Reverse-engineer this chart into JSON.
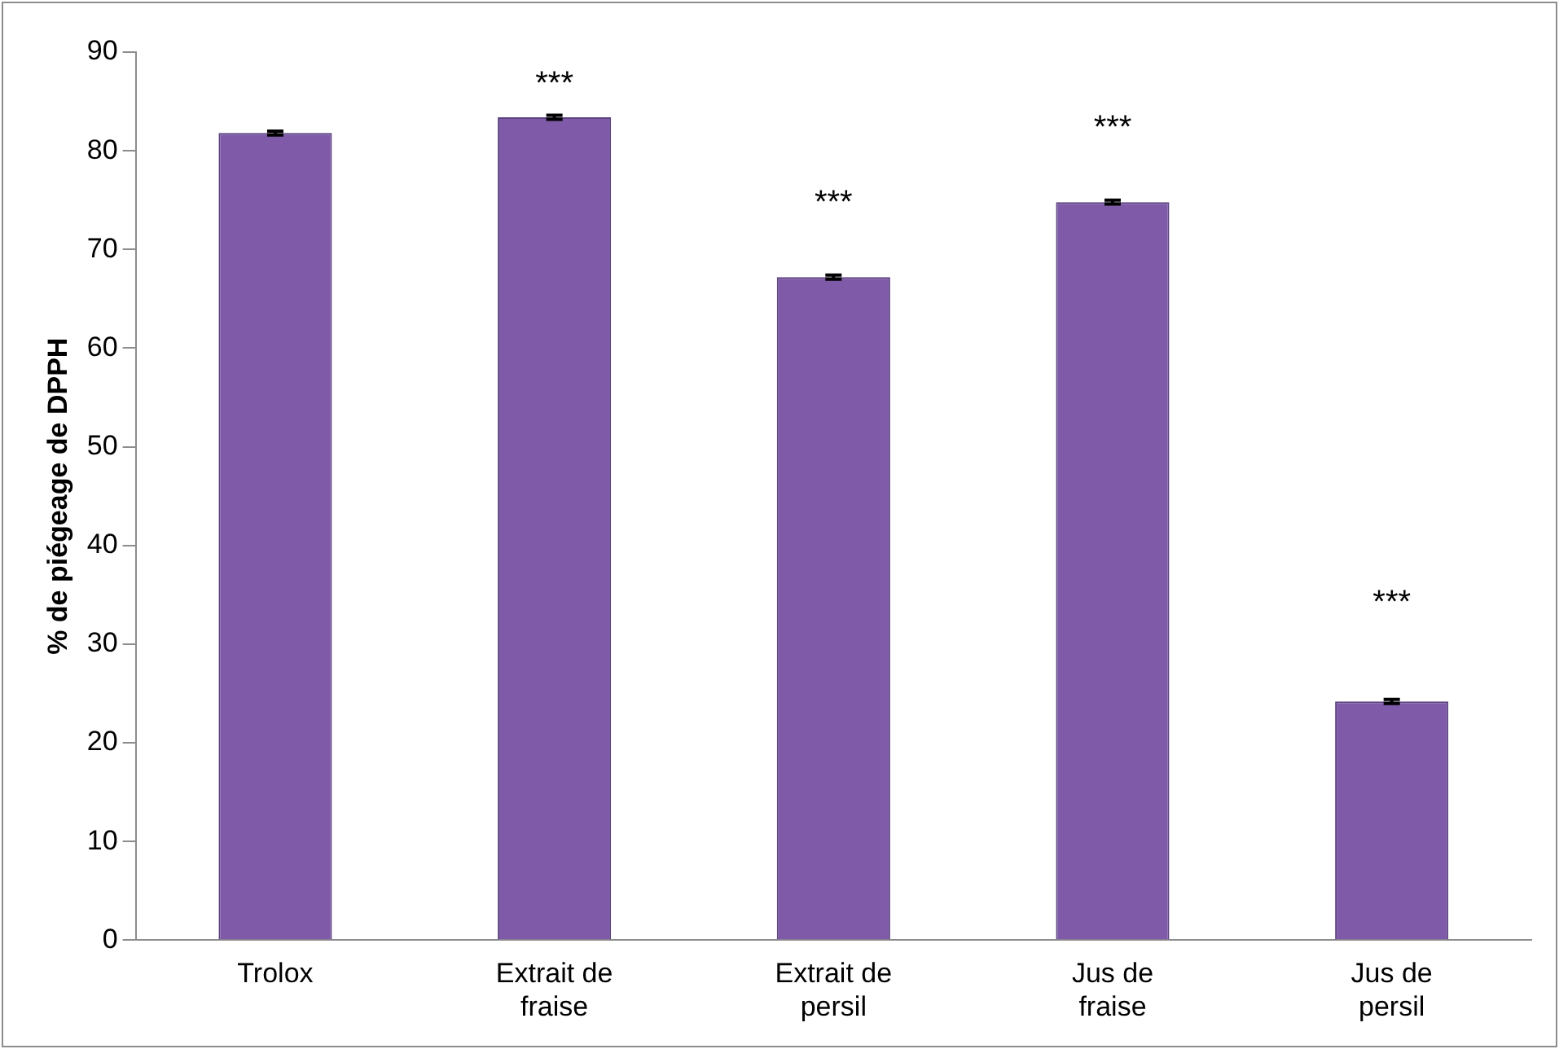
{
  "chart_data": {
    "type": "bar",
    "ylabel": "% de piégeage de DPPH",
    "categories": [
      "Trolox",
      "Extrait de fraise",
      "Extrait de persil",
      "Jus de fraise",
      "Jus de persil"
    ],
    "values": [
      81.8,
      83.4,
      67.2,
      74.8,
      24.2
    ],
    "errors": [
      0.2,
      0.2,
      0.2,
      0.2,
      0.2
    ],
    "color": "#7e5aa8",
    "ylim": [
      0,
      90
    ],
    "yticks": [
      0,
      10,
      20,
      30,
      40,
      50,
      60,
      70,
      80,
      90
    ],
    "grid": false,
    "legend": false,
    "annotations": [
      "***",
      "***",
      "***",
      "***"
    ]
  }
}
